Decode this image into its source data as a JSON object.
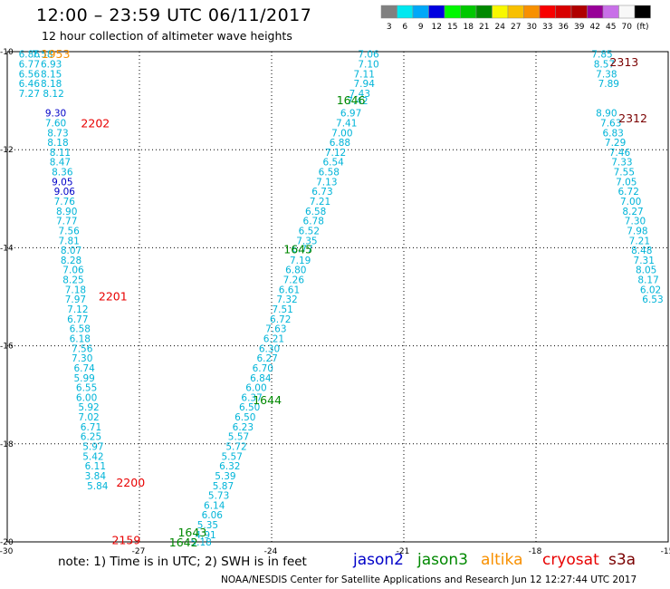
{
  "header": {
    "title": "12:00 – 23:59 UTC 06/11/2017",
    "subtitle": "12 hour collection of altimeter wave heights"
  },
  "scale": {
    "labels": [
      "3",
      "6",
      "9",
      "12",
      "15",
      "18",
      "21",
      "24",
      "27",
      "30",
      "33",
      "36",
      "39",
      "42",
      "45",
      "70",
      "(ft)"
    ],
    "colors": [
      "#808080",
      "#00e8f0",
      "#00a8f8",
      "#0000e0",
      "#00f800",
      "#00c800",
      "#008800",
      "#f8f800",
      "#f8c000",
      "#f89000",
      "#f80000",
      "#d80000",
      "#b00000",
      "#980098",
      "#c870e8",
      "#f8f8f8",
      "#000000"
    ]
  },
  "footer": {
    "note": "note:  1) Time is in UTC;  2) SWH is in feet",
    "credit": "NOAA/NESDIS Center for Satellite Applications and Research     Jun 12 12:27:44 UTC 2017",
    "satellites": [
      {
        "name": "jason2",
        "color": "#0000c8"
      },
      {
        "name": "jason3",
        "color": "#008800"
      },
      {
        "name": "altika",
        "color": "#f89000"
      },
      {
        "name": "cryosat",
        "color": "#e80000"
      },
      {
        "name": "s3a",
        "color": "#7a0000"
      }
    ]
  },
  "chart_data": {
    "type": "scatter",
    "title": "12:00 – 23:59 UTC 06/11/2017",
    "xlim": [
      -30,
      -15
    ],
    "ylim": [
      -20,
      -10
    ],
    "x_ticks": [
      "-30",
      "-27",
      "-24",
      "-21",
      "-18",
      "-15"
    ],
    "y_ticks": [
      "-10",
      "-12",
      "-14",
      "-16",
      "-18",
      "-20"
    ],
    "grid": true,
    "track_labels": [
      {
        "text": "1953",
        "x": -28.9,
        "y": -10.04,
        "color": "#f89000"
      },
      {
        "text": "2202",
        "x": -28.0,
        "y": -11.45,
        "color": "#e80000"
      },
      {
        "text": "2201",
        "x": -27.6,
        "y": -14.98,
        "color": "#e80000"
      },
      {
        "text": "2200",
        "x": -27.2,
        "y": -18.78,
        "color": "#e80000"
      },
      {
        "text": "2159",
        "x": -27.3,
        "y": -19.95,
        "color": "#e80000"
      },
      {
        "text": "1646",
        "x": -22.2,
        "y": -10.98,
        "color": "#008800"
      },
      {
        "text": "1645",
        "x": -23.4,
        "y": -14.02,
        "color": "#008800"
      },
      {
        "text": "1644",
        "x": -24.1,
        "y": -17.1,
        "color": "#008800"
      },
      {
        "text": "1643",
        "x": -25.8,
        "y": -19.8,
        "color": "#008800"
      },
      {
        "text": "1642",
        "x": -26.0,
        "y": -20.0,
        "color": "#008800"
      },
      {
        "text": "2313",
        "x": -16.0,
        "y": -10.2,
        "color": "#7a0000"
      },
      {
        "text": "2312",
        "x": -15.8,
        "y": -11.35,
        "color": "#7a0000"
      }
    ],
    "series": [
      {
        "name": "jason3",
        "color": "#00b4d8",
        "points": [
          {
            "x": -21.8,
            "y": -10.05,
            "v": "7.06"
          },
          {
            "x": -21.8,
            "y": -10.25,
            "v": "7.10"
          },
          {
            "x": -21.9,
            "y": -10.45,
            "v": "7.11"
          },
          {
            "x": -21.9,
            "y": -10.65,
            "v": "7.94"
          },
          {
            "x": -22.0,
            "y": -10.85,
            "v": "7.43"
          },
          {
            "x": -22.05,
            "y": -11.0,
            "v": "7.42"
          },
          {
            "x": -22.2,
            "y": -11.25,
            "v": "6.97"
          },
          {
            "x": -22.3,
            "y": -11.45,
            "v": "7.41"
          },
          {
            "x": -22.4,
            "y": -11.65,
            "v": "7.00"
          },
          {
            "x": -22.45,
            "y": -11.85,
            "v": "6.88"
          },
          {
            "x": -22.55,
            "y": -12.05,
            "v": "7.12"
          },
          {
            "x": -22.6,
            "y": -12.25,
            "v": "6.54"
          },
          {
            "x": -22.7,
            "y": -12.45,
            "v": "6.58"
          },
          {
            "x": -22.75,
            "y": -12.65,
            "v": "7.13"
          },
          {
            "x": -22.85,
            "y": -12.85,
            "v": "6.73"
          },
          {
            "x": -22.9,
            "y": -13.05,
            "v": "7.21"
          },
          {
            "x": -23.0,
            "y": -13.25,
            "v": "6.58"
          },
          {
            "x": -23.05,
            "y": -13.45,
            "v": "6.78"
          },
          {
            "x": -23.15,
            "y": -13.65,
            "v": "6.52"
          },
          {
            "x": -23.2,
            "y": -13.85,
            "v": "7.35"
          },
          {
            "x": -23.3,
            "y": -14.02,
            "v": "6.77"
          },
          {
            "x": -23.35,
            "y": -14.25,
            "v": "7.19"
          },
          {
            "x": -23.45,
            "y": -14.45,
            "v": "6.80"
          },
          {
            "x": -23.5,
            "y": -14.65,
            "v": "7.26"
          },
          {
            "x": -23.6,
            "y": -14.85,
            "v": "6.61"
          },
          {
            "x": -23.65,
            "y": -15.05,
            "v": "7.32"
          },
          {
            "x": -23.75,
            "y": -15.25,
            "v": "7.51"
          },
          {
            "x": -23.8,
            "y": -15.45,
            "v": "6.72"
          },
          {
            "x": -23.9,
            "y": -15.65,
            "v": "7.63"
          },
          {
            "x": -23.95,
            "y": -15.85,
            "v": "6.21"
          },
          {
            "x": -24.05,
            "y": -16.05,
            "v": "6.30"
          },
          {
            "x": -24.1,
            "y": -16.25,
            "v": "6.27"
          },
          {
            "x": -24.2,
            "y": -16.45,
            "v": "6.70"
          },
          {
            "x": -24.25,
            "y": -16.65,
            "v": "6.84"
          },
          {
            "x": -24.35,
            "y": -16.85,
            "v": "6.00"
          },
          {
            "x": -24.45,
            "y": -17.05,
            "v": "6.37"
          },
          {
            "x": -24.5,
            "y": -17.25,
            "v": "6.50"
          },
          {
            "x": -24.6,
            "y": -17.45,
            "v": "6.50"
          },
          {
            "x": -24.65,
            "y": -17.65,
            "v": "6.23"
          },
          {
            "x": -24.75,
            "y": -17.85,
            "v": "5.57"
          },
          {
            "x": -24.8,
            "y": -18.05,
            "v": "5.72"
          },
          {
            "x": -24.9,
            "y": -18.25,
            "v": "5.57"
          },
          {
            "x": -24.95,
            "y": -18.45,
            "v": "6.32"
          },
          {
            "x": -25.05,
            "y": -18.65,
            "v": "5.39"
          },
          {
            "x": -25.1,
            "y": -18.85,
            "v": "5.87"
          },
          {
            "x": -25.2,
            "y": -19.05,
            "v": "5.73"
          },
          {
            "x": -25.3,
            "y": -19.25,
            "v": "6.14"
          },
          {
            "x": -25.35,
            "y": -19.45,
            "v": "6.06"
          },
          {
            "x": -25.45,
            "y": -19.65,
            "v": "5.35"
          },
          {
            "x": -25.5,
            "y": -19.85,
            "v": "4.91"
          },
          {
            "x": -25.6,
            "y": -20.0,
            "v": "5.18"
          }
        ]
      },
      {
        "name": "cryosat",
        "color": "#00b4d8",
        "points": [
          {
            "x": -29.5,
            "y": -10.05,
            "v": "6.86"
          },
          {
            "x": -29.2,
            "y": -10.05,
            "v": "7.58"
          },
          {
            "x": -29.5,
            "y": -10.25,
            "v": "6.77"
          },
          {
            "x": -29.0,
            "y": -10.25,
            "v": "6.93"
          },
          {
            "x": -29.5,
            "y": -10.45,
            "v": "6.56"
          },
          {
            "x": -29.0,
            "y": -10.45,
            "v": "8.15"
          },
          {
            "x": -29.5,
            "y": -10.65,
            "v": "6.46"
          },
          {
            "x": -29.0,
            "y": -10.65,
            "v": "8.18"
          },
          {
            "x": -29.5,
            "y": -10.85,
            "v": "7.27"
          },
          {
            "x": -28.95,
            "y": -10.85,
            "v": "8.12"
          },
          {
            "x": -28.9,
            "y": -11.25,
            "v": "9.30",
            "color": "#0000c8"
          },
          {
            "x": -28.9,
            "y": -11.45,
            "v": "7.60"
          },
          {
            "x": -28.85,
            "y": -11.65,
            "v": "8.73"
          },
          {
            "x": -28.85,
            "y": -11.85,
            "v": "8.18"
          },
          {
            "x": -28.8,
            "y": -12.05,
            "v": "8.11"
          },
          {
            "x": -28.8,
            "y": -12.25,
            "v": "8.47"
          },
          {
            "x": -28.75,
            "y": -12.45,
            "v": "8.36"
          },
          {
            "x": -28.75,
            "y": -12.65,
            "v": "9.05",
            "color": "#0000c8"
          },
          {
            "x": -28.7,
            "y": -12.85,
            "v": "9.06",
            "color": "#0000c8"
          },
          {
            "x": -28.7,
            "y": -13.05,
            "v": "7.76"
          },
          {
            "x": -28.65,
            "y": -13.25,
            "v": "8.90"
          },
          {
            "x": -28.65,
            "y": -13.45,
            "v": "7.77"
          },
          {
            "x": -28.6,
            "y": -13.65,
            "v": "7.56"
          },
          {
            "x": -28.6,
            "y": -13.85,
            "v": "7.81"
          },
          {
            "x": -28.55,
            "y": -14.05,
            "v": "8.07"
          },
          {
            "x": -28.55,
            "y": -14.25,
            "v": "8.28"
          },
          {
            "x": -28.5,
            "y": -14.45,
            "v": "7.06"
          },
          {
            "x": -28.5,
            "y": -14.65,
            "v": "8.25"
          },
          {
            "x": -28.45,
            "y": -14.85,
            "v": "7.18"
          },
          {
            "x": -28.45,
            "y": -15.05,
            "v": "7.97"
          },
          {
            "x": -28.4,
            "y": -15.25,
            "v": "7.12"
          },
          {
            "x": -28.4,
            "y": -15.45,
            "v": "6.77"
          },
          {
            "x": -28.35,
            "y": -15.65,
            "v": "6.58"
          },
          {
            "x": -28.35,
            "y": -15.85,
            "v": "6.18"
          },
          {
            "x": -28.3,
            "y": -16.05,
            "v": "7.56"
          },
          {
            "x": -28.3,
            "y": -16.25,
            "v": "7.30"
          },
          {
            "x": -28.25,
            "y": -16.45,
            "v": "6.74"
          },
          {
            "x": -28.25,
            "y": -16.65,
            "v": "5.99"
          },
          {
            "x": -28.2,
            "y": -16.85,
            "v": "6.55"
          },
          {
            "x": -28.2,
            "y": -17.05,
            "v": "6.00"
          },
          {
            "x": -28.15,
            "y": -17.25,
            "v": "5.92"
          },
          {
            "x": -28.15,
            "y": -17.45,
            "v": "7.02"
          },
          {
            "x": -28.1,
            "y": -17.65,
            "v": "6.71"
          },
          {
            "x": -28.1,
            "y": -17.85,
            "v": "6.25"
          },
          {
            "x": -28.05,
            "y": -18.05,
            "v": "5.97"
          },
          {
            "x": -28.05,
            "y": -18.25,
            "v": "5.42"
          },
          {
            "x": -28.0,
            "y": -18.45,
            "v": "6.11"
          },
          {
            "x": -28.0,
            "y": -18.65,
            "v": "3.84"
          },
          {
            "x": -27.95,
            "y": -18.85,
            "v": "5.84"
          }
        ]
      },
      {
        "name": "s3a",
        "color": "#00b4d8",
        "points": [
          {
            "x": -16.5,
            "y": -10.05,
            "v": "7.85"
          },
          {
            "x": -16.45,
            "y": -10.25,
            "v": "8.57"
          },
          {
            "x": -16.4,
            "y": -10.45,
            "v": "7.38"
          },
          {
            "x": -16.35,
            "y": -10.65,
            "v": "7.89"
          },
          {
            "x": -16.4,
            "y": -11.25,
            "v": "8.90"
          },
          {
            "x": -16.3,
            "y": -11.45,
            "v": "7.63"
          },
          {
            "x": -16.25,
            "y": -11.65,
            "v": "6.83"
          },
          {
            "x": -16.2,
            "y": -11.85,
            "v": "7.29"
          },
          {
            "x": -16.1,
            "y": -12.05,
            "v": "7.46"
          },
          {
            "x": -16.05,
            "y": -12.25,
            "v": "7.33"
          },
          {
            "x": -16.0,
            "y": -12.45,
            "v": "7.55"
          },
          {
            "x": -15.95,
            "y": -12.65,
            "v": "7.05"
          },
          {
            "x": -15.9,
            "y": -12.85,
            "v": "6.72"
          },
          {
            "x": -15.85,
            "y": -13.05,
            "v": "7.00"
          },
          {
            "x": -15.8,
            "y": -13.25,
            "v": "8.27"
          },
          {
            "x": -15.75,
            "y": -13.45,
            "v": "7.30"
          },
          {
            "x": -15.7,
            "y": -13.65,
            "v": "7.98"
          },
          {
            "x": -15.65,
            "y": -13.85,
            "v": "7.21"
          },
          {
            "x": -15.6,
            "y": -14.05,
            "v": "8.48"
          },
          {
            "x": -15.55,
            "y": -14.25,
            "v": "7.31"
          },
          {
            "x": -15.5,
            "y": -14.45,
            "v": "8.05"
          },
          {
            "x": -15.45,
            "y": -14.65,
            "v": "8.17"
          },
          {
            "x": -15.4,
            "y": -14.85,
            "v": "6.02"
          },
          {
            "x": -15.35,
            "y": -15.05,
            "v": "6.53"
          }
        ]
      }
    ]
  }
}
